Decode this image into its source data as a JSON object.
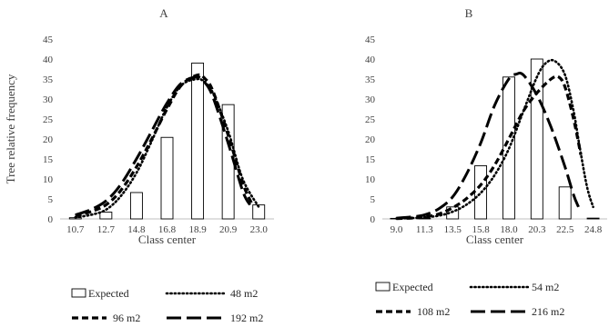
{
  "chart_data": [
    {
      "type": "bar",
      "title": "A",
      "xlabel": "Class center",
      "ylabel": "Tree  relative frequency",
      "ylim": [
        0,
        45
      ],
      "yticks": [
        0,
        5,
        10,
        15,
        20,
        25,
        30,
        35,
        40,
        45
      ],
      "grid": false,
      "legend_position": "bottom",
      "categories": [
        "10.7",
        "12.7",
        "14.8",
        "16.8",
        "18.9",
        "20.9",
        "23.0"
      ],
      "x": [
        10.7,
        12.7,
        14.8,
        16.8,
        18.9,
        20.9,
        23.0
      ],
      "series": [
        {
          "name": "Expected",
          "type": "bar",
          "color": "#000000",
          "values": [
            0.3,
            1.7,
            6.6,
            20.4,
            39.0,
            28.6,
            3.5
          ]
        },
        {
          "name": "48 m2",
          "type": "line",
          "style": "dotted",
          "color": "#000000",
          "x": [
            10.7,
            11.7,
            12.7,
            13.7,
            14.8,
            15.8,
            16.8,
            17.8,
            18.9,
            19.4,
            19.9,
            20.9,
            21.9,
            23.0
          ],
          "values": [
            0.4,
            1.0,
            2.3,
            5.6,
            11.5,
            19.5,
            28.0,
            33.5,
            35.0,
            34.0,
            31.5,
            22.0,
            10.0,
            3.0
          ]
        },
        {
          "name": "96 m2",
          "type": "line",
          "style": "dashed",
          "color": "#000000",
          "x": [
            10.7,
            11.7,
            12.7,
            13.7,
            14.8,
            15.8,
            16.8,
            17.8,
            18.9,
            19.4,
            19.9,
            20.9,
            21.9,
            22.5
          ],
          "values": [
            0.7,
            1.8,
            3.5,
            7.0,
            13.0,
            20.0,
            27.5,
            33.5,
            36.0,
            35.0,
            32.0,
            21.0,
            9.0,
            4.0
          ]
        },
        {
          "name": "192 m2",
          "type": "line",
          "style": "long-dash",
          "color": "#000000",
          "x": [
            10.7,
            11.7,
            12.7,
            13.7,
            14.8,
            15.8,
            16.8,
            17.8,
            18.9,
            19.4,
            19.9,
            20.9,
            21.9,
            22.4
          ],
          "values": [
            1.0,
            2.3,
            4.5,
            8.5,
            15.0,
            22.0,
            29.0,
            34.0,
            35.5,
            34.0,
            30.5,
            19.0,
            7.0,
            3.5
          ]
        }
      ]
    },
    {
      "type": "bar",
      "title": "B",
      "xlabel": "Class center",
      "ylabel": "",
      "ylim": [
        0,
        45
      ],
      "yticks": [
        0,
        5,
        10,
        15,
        20,
        25,
        30,
        35,
        40,
        45
      ],
      "grid": false,
      "legend_position": "bottom",
      "categories": [
        "9.0",
        "11.3",
        "13.5",
        "15.8",
        "18.0",
        "20.3",
        "22.5",
        "24.8"
      ],
      "x": [
        9.0,
        11.3,
        13.5,
        15.8,
        18.0,
        20.3,
        22.5,
        24.8
      ],
      "series": [
        {
          "name": "Expected",
          "type": "bar",
          "color": "#000000",
          "values": [
            0,
            0,
            3.0,
            13.3,
            35.5,
            40.0,
            8.0,
            0.2
          ]
        },
        {
          "name": "54 m2",
          "type": "line",
          "style": "dotted",
          "color": "#000000",
          "x": [
            9.0,
            10.2,
            11.3,
            12.4,
            13.5,
            14.6,
            15.8,
            16.9,
            18.0,
            19.2,
            20.3,
            21.0,
            21.7,
            22.5,
            23.2,
            23.7,
            24.3,
            24.8
          ],
          "values": [
            0.1,
            0.2,
            0.4,
            0.8,
            1.8,
            3.5,
            6.5,
            11.0,
            17.5,
            27.0,
            35.5,
            39.0,
            39.5,
            36.0,
            27.0,
            18.0,
            8.0,
            3.0
          ]
        },
        {
          "name": "108 m2",
          "type": "line",
          "style": "dashed",
          "color": "#000000",
          "x": [
            9.0,
            10.2,
            11.3,
            12.4,
            13.5,
            14.6,
            15.8,
            16.9,
            18.0,
            19.2,
            20.3,
            21.4,
            22.0,
            22.5,
            23.2,
            23.8
          ],
          "values": [
            0.1,
            0.2,
            0.5,
            1.2,
            2.8,
            5.0,
            8.5,
            13.5,
            20.0,
            27.0,
            31.5,
            35.0,
            35.5,
            33.0,
            25.0,
            16.0
          ]
        },
        {
          "name": "216 m2",
          "type": "line",
          "style": "long-dash",
          "color": "#000000",
          "x": [
            9.0,
            10.2,
            11.3,
            12.4,
            13.5,
            14.6,
            15.8,
            16.9,
            18.0,
            18.6,
            19.2,
            20.3,
            21.4,
            22.5,
            23.2,
            23.6
          ],
          "values": [
            0.2,
            0.5,
            1.0,
            2.5,
            5.5,
            11.0,
            19.0,
            28.5,
            35.0,
            36.2,
            36.0,
            31.0,
            23.0,
            13.0,
            6.0,
            3.0
          ]
        }
      ]
    }
  ]
}
